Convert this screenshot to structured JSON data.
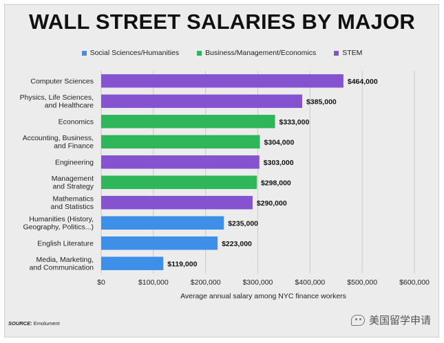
{
  "chart_data": {
    "type": "bar",
    "orientation": "horizontal",
    "title": "WALL STREET SALARIES BY MAJOR",
    "xlabel": "Average annual salary among NYC finance workers",
    "xlim": [
      0,
      600000
    ],
    "xticks": [
      0,
      100000,
      200000,
      300000,
      400000,
      500000,
      600000
    ],
    "xtick_labels": [
      "$0",
      "$100,000",
      "$200,000",
      "$300,000",
      "$400,000",
      "$500,000",
      "$600,000"
    ],
    "grid": true,
    "legend_position": "top",
    "legend": [
      {
        "name": "Social Sciences/Humanities",
        "color": "#3d8fe8"
      },
      {
        "name": "Business/Management/Economics",
        "color": "#2fb55a"
      },
      {
        "name": "STEM",
        "color": "#8553cf"
      }
    ],
    "bars": [
      {
        "label": [
          "Computer Sciences"
        ],
        "value": 464000,
        "value_label": "$464,000",
        "group": "STEM"
      },
      {
        "label": [
          "Physics, Life Sciences,",
          "and Healthcare"
        ],
        "value": 385000,
        "value_label": "$385,000",
        "group": "STEM"
      },
      {
        "label": [
          "Economics"
        ],
        "value": 333000,
        "value_label": "$333,000",
        "group": "Business/Management/Economics"
      },
      {
        "label": [
          "Accounting, Business,",
          "and Finance"
        ],
        "value": 304000,
        "value_label": "$304,000",
        "group": "Business/Management/Economics"
      },
      {
        "label": [
          "Engineering"
        ],
        "value": 303000,
        "value_label": "$303,000",
        "group": "STEM"
      },
      {
        "label": [
          "Management",
          "and Strategy"
        ],
        "value": 298000,
        "value_label": "$298,000",
        "group": "Business/Management/Economics"
      },
      {
        "label": [
          "Mathematics",
          "and Statistics"
        ],
        "value": 290000,
        "value_label": "$290,000",
        "group": "STEM"
      },
      {
        "label": [
          "Humanities (History,",
          "Geography, Politics...)"
        ],
        "value": 235000,
        "value_label": "$235,000",
        "group": "Social Sciences/Humanities"
      },
      {
        "label": [
          "English Literature"
        ],
        "value": 223000,
        "value_label": "$223,000",
        "group": "Social Sciences/Humanities"
      },
      {
        "label": [
          "Media, Marketing,",
          "and Communication"
        ],
        "value": 119000,
        "value_label": "$119,000",
        "group": "Social Sciences/Humanities"
      }
    ]
  },
  "source": {
    "label": "SOURCE:",
    "text": "Emolument"
  },
  "watermark": {
    "text": "美国留学申请"
  }
}
